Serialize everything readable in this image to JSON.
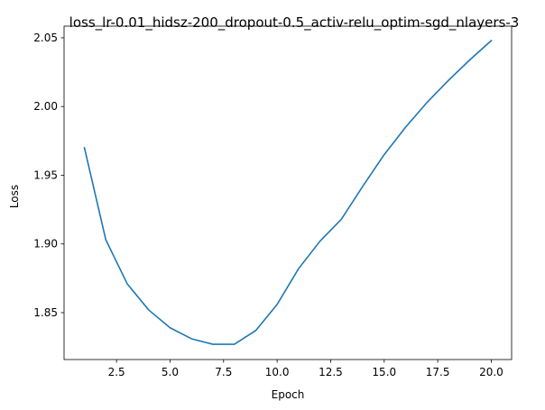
{
  "chart_data": {
    "type": "line",
    "title": "loss_lr-0.01_hidsz-200_dropout-0.5_activ-relu_optim-sgd_nlayers-3",
    "xlabel": "Epoch",
    "ylabel": "Loss",
    "xlim": [
      0.05,
      20.95
    ],
    "ylim": [
      1.8159,
      2.0585
    ],
    "xticks": [
      2.5,
      5.0,
      7.5,
      10.0,
      12.5,
      15.0,
      17.5,
      20.0
    ],
    "xtick_labels": [
      "2.5",
      "5.0",
      "7.5",
      "10.0",
      "12.5",
      "15.0",
      "17.5",
      "20.0"
    ],
    "yticks": [
      1.85,
      1.9,
      1.95,
      2.0,
      2.05
    ],
    "ytick_labels": [
      "1.85",
      "1.90",
      "1.95",
      "2.00",
      "2.05"
    ],
    "grid": false,
    "series": [
      {
        "color": "#1f77b4",
        "x": [
          1,
          2,
          3,
          4,
          5,
          6,
          7,
          8,
          9,
          10,
          11,
          12,
          13,
          14,
          15,
          16,
          17,
          18,
          19,
          20
        ],
        "values": [
          1.97,
          1.903,
          1.871,
          1.852,
          1.839,
          1.831,
          1.827,
          1.827,
          1.837,
          1.856,
          1.882,
          1.902,
          1.918,
          1.942,
          1.965,
          1.985,
          2.003,
          2.019,
          2.034,
          2.048
        ]
      }
    ]
  }
}
